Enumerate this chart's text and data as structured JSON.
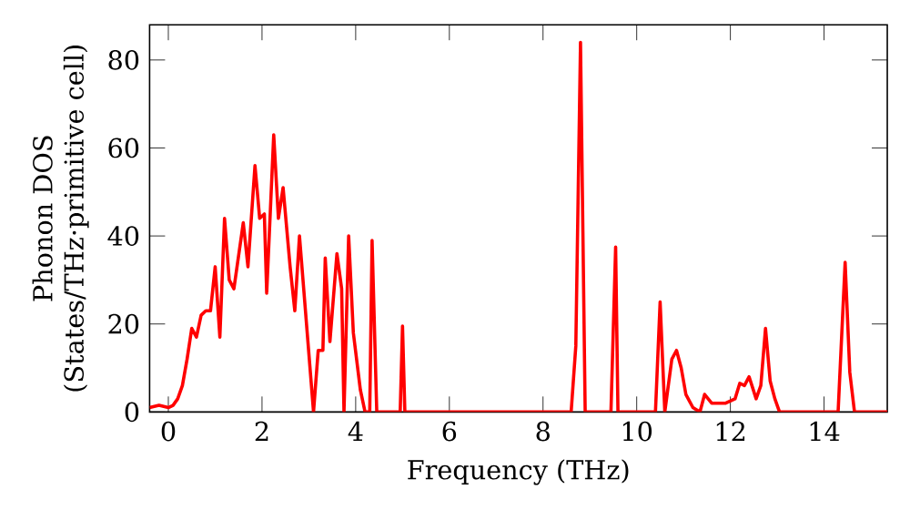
{
  "chart_data": {
    "type": "line",
    "xlabel": "Frequency (THz)",
    "ylabel": "Phonon DOS\n(States/THz·primitive cell)",
    "color": "#ff0000",
    "grid": false,
    "x": [
      -0.4,
      -0.2,
      0,
      0.1,
      0.2,
      0.3,
      0.4,
      0.5,
      0.6,
      0.7,
      0.8,
      0.9,
      1.0,
      1.1,
      1.2,
      1.3,
      1.4,
      1.6,
      1.7,
      1.85,
      1.95,
      2.05,
      2.1,
      2.25,
      2.35,
      2.45,
      2.6,
      2.7,
      2.8,
      3.1,
      3.2,
      3.3,
      3.35,
      3.45,
      3.6,
      3.7,
      3.75,
      3.85,
      3.95,
      4.1,
      4.2,
      4.3,
      4.35,
      4.45,
      4.95,
      5.0,
      5.05,
      8.6,
      8.7,
      8.8,
      8.9,
      9.45,
      9.55,
      9.6,
      10.4,
      10.5,
      10.6,
      10.75,
      10.85,
      10.95,
      11.05,
      11.2,
      11.35,
      11.45,
      11.6,
      11.9,
      12.1,
      12.2,
      12.3,
      12.4,
      12.55,
      12.65,
      12.75,
      12.85,
      12.95,
      13.05,
      14.3,
      14.45,
      14.55,
      14.65,
      15.35
    ],
    "values": [
      1,
      1.5,
      1,
      1.5,
      3,
      6,
      12,
      19,
      17,
      22,
      23,
      23,
      33,
      17,
      44,
      30,
      28,
      43,
      33,
      56,
      44,
      45,
      27,
      63,
      44,
      51,
      33,
      23,
      40,
      0,
      14,
      14,
      35,
      16,
      36,
      28,
      0,
      40,
      18,
      5,
      0,
      0,
      39,
      0,
      0,
      19.5,
      0,
      0,
      15,
      84,
      0,
      0,
      37.5,
      0,
      0,
      25,
      0,
      12,
      14,
      10,
      4,
      1,
      0,
      4,
      2,
      2,
      3,
      6.5,
      6,
      8,
      3,
      6,
      19,
      7,
      3,
      0,
      0,
      34,
      9,
      0,
      0
    ],
    "xlim": [
      -0.4,
      15.35
    ],
    "ylim": [
      0,
      88
    ],
    "xticks": [
      0,
      2,
      4,
      6,
      8,
      10,
      12,
      14
    ],
    "yticks": [
      0,
      20,
      40,
      60,
      80
    ]
  }
}
